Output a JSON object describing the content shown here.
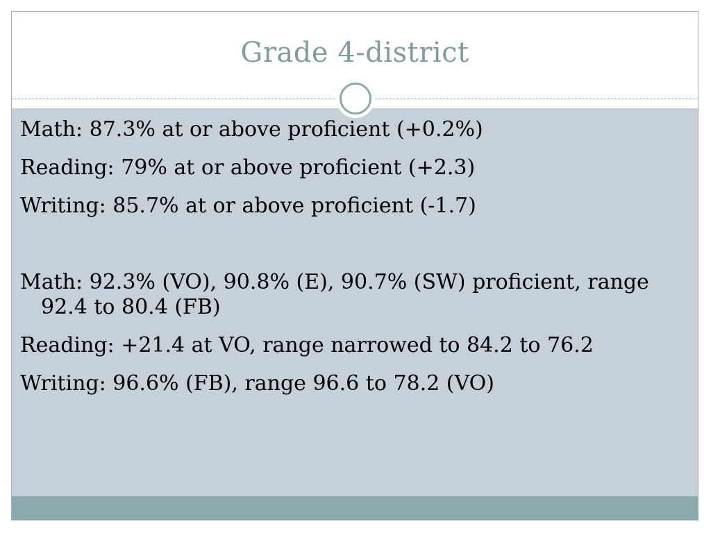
{
  "slide": {
    "title": "Grade 4-district",
    "lines": [
      "Math:  87.3% at or above proficient (+0.2%)",
      "Reading:  79% at or above proficient (+2.3)",
      "Writing:  85.7% at or above proficient (-1.7)",
      "Math: 92.3% (VO), 90.8% (E), 90.7% (SW) proficient, range 92.4 to 80.4 (FB)",
      "Reading: +21.4 at VO, range narrowed to 84.2 to 76.2",
      "Writing: 96.6% (FB), range 96.6 to 78.2 (VO)"
    ]
  },
  "colors": {
    "title": "#7f9c9f",
    "content_background": "#c5d0d8",
    "footer_band": "#8aaaab",
    "ornament_ring": "#8aaaab"
  },
  "icons": {
    "ornament": "circle-ring-icon"
  }
}
